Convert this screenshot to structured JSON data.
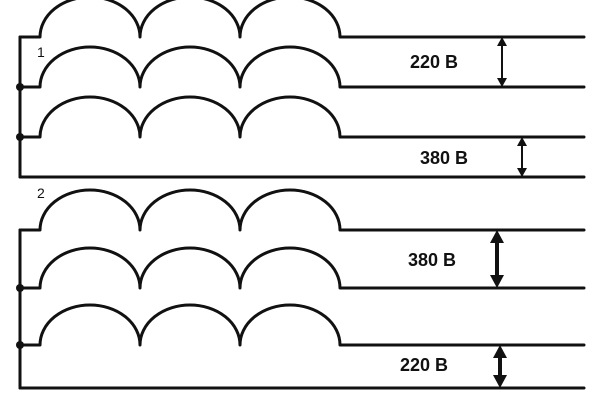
{
  "diagram": {
    "line_color": "#111111",
    "background": "#ffffff",
    "sections": [
      {
        "label": "1",
        "voltages": [
          "220 В",
          "380 В"
        ]
      },
      {
        "label": "2",
        "voltages": [
          "380 В",
          "220 В"
        ]
      }
    ]
  }
}
